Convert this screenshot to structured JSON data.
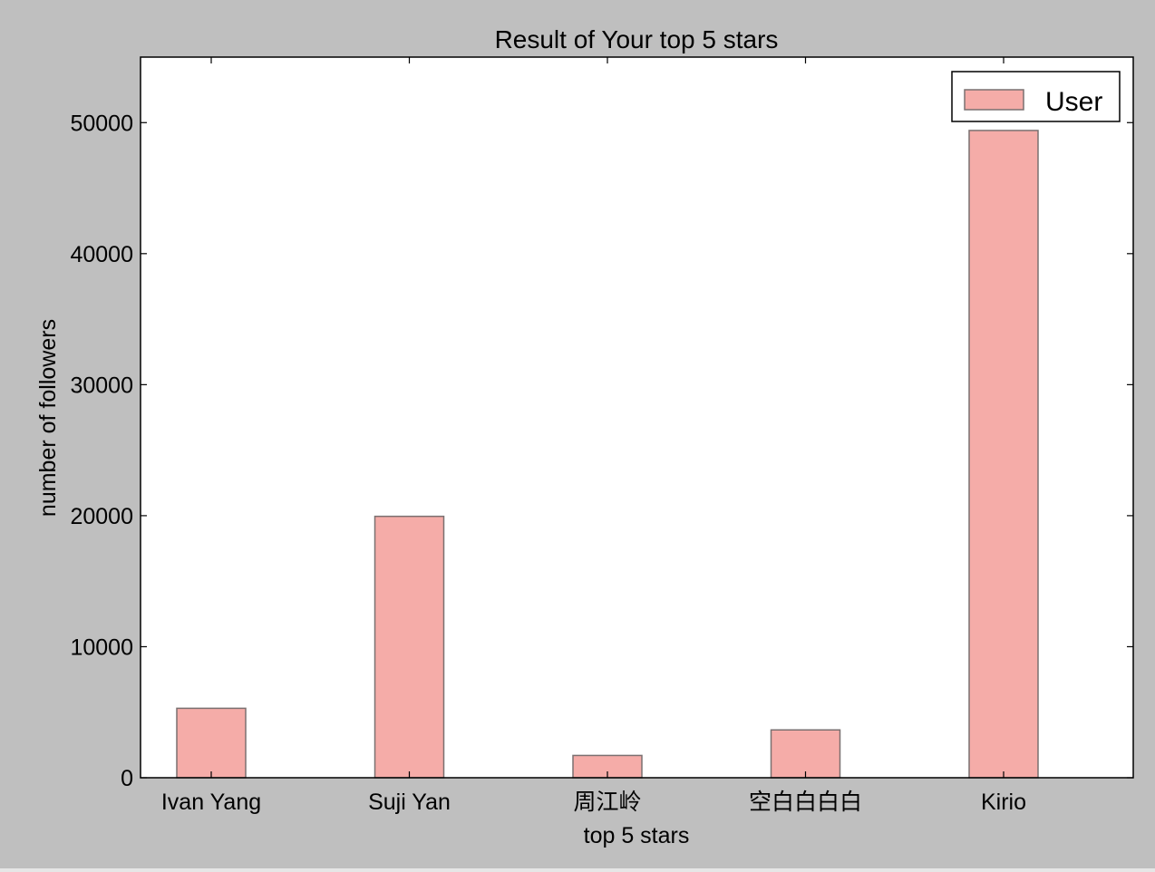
{
  "chart_data": {
    "type": "bar",
    "title": "Result of Your top 5 stars",
    "xlabel": "top 5 stars",
    "ylabel": "number of followers",
    "categories": [
      "Ivan Yang",
      "Suji Yan",
      "周江岭",
      "空白白白白",
      "Kirio"
    ],
    "series": [
      {
        "name": "User",
        "values": [
          5300,
          19950,
          1700,
          3650,
          49400
        ]
      }
    ],
    "ylim": [
      0,
      55000
    ],
    "yticks": [
      0,
      10000,
      20000,
      30000,
      40000,
      50000
    ],
    "ytick_labels": [
      "0",
      "10000",
      "20000",
      "30000",
      "40000",
      "50000"
    ],
    "grid": false,
    "legend": "top-right",
    "colors": {
      "figure_background": "#bfbfbf",
      "plot_background": "#ffffff",
      "bar_fill": "#f5aca8",
      "bar_edge": "#7a7070"
    }
  }
}
